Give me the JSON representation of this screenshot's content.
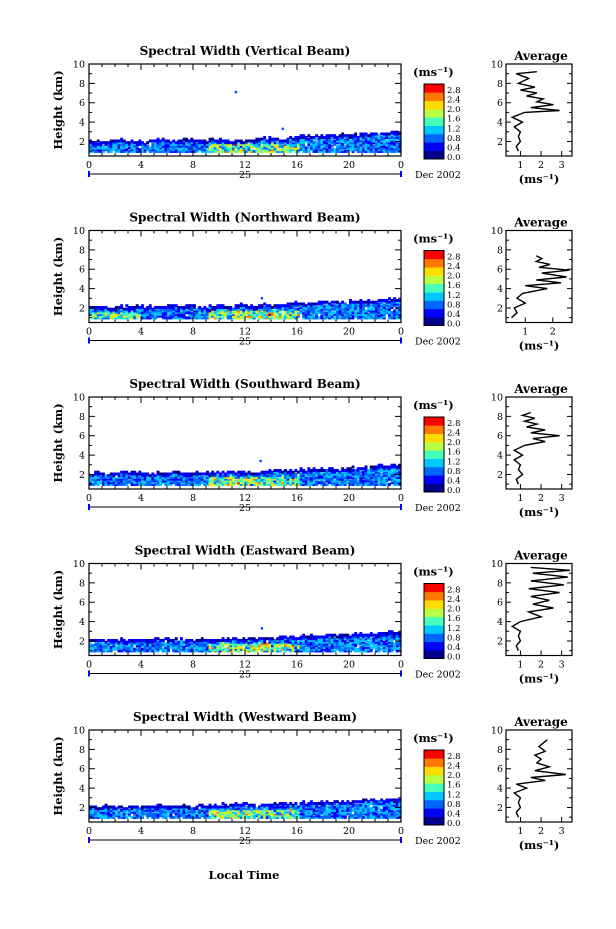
{
  "figure": {
    "x_label": "Local Time",
    "date_label": "Dec 2002",
    "day_label": "25",
    "y_label": "Height (km)",
    "unit_label": "(ms⁻¹)",
    "avg_title": "Average",
    "avg_xlabel": "(ms⁻¹)"
  },
  "colorbar": {
    "ticks": [
      "0.0",
      "0.4",
      "0.8",
      "1.2",
      "1.6",
      "2.0",
      "2.4",
      "2.8"
    ],
    "colors": [
      "#00008b",
      "#0000ff",
      "#0064ff",
      "#00c8ff",
      "#46ffb9",
      "#b9ff46",
      "#ffdc00",
      "#ff7800",
      "#ff0000"
    ]
  },
  "chart_data": [
    {
      "type": "heatmap",
      "title": "Spectral Width (Vertical Beam)",
      "x_ticks": [
        "0",
        "4",
        "8",
        "12",
        "16",
        "20",
        "0"
      ],
      "y_ticks": [
        "2",
        "4",
        "6",
        "8",
        "10"
      ],
      "x_range": [
        0,
        24
      ],
      "y_range": [
        0.5,
        10
      ],
      "layer_top_km": [
        1.9,
        1.9,
        2.0,
        1.9,
        1.9,
        2.1,
        2.0,
        2.1,
        2.0,
        2.1,
        2.0,
        2.0,
        2.1,
        2.3,
        2.2,
        2.3,
        2.4,
        2.5,
        2.5,
        2.6,
        2.6,
        2.7,
        2.7,
        2.8,
        2.8
      ],
      "scatter_points": [
        [
          11.3,
          7.1
        ],
        [
          14.9,
          3.3
        ]
      ],
      "average": {
        "x_ticks": [
          "1",
          "2",
          "3"
        ],
        "x_range": [
          0.3,
          3.5
        ],
        "y_ticks": [
          "2",
          "4",
          "6",
          "8",
          "10"
        ],
        "profile": [
          [
            0.9,
            1.0
          ],
          [
            0.8,
            1.5
          ],
          [
            1.0,
            2.0
          ],
          [
            0.9,
            2.5
          ],
          [
            1.0,
            3.0
          ],
          [
            0.7,
            3.5
          ],
          [
            1.1,
            4.0
          ],
          [
            0.6,
            4.5
          ],
          [
            1.2,
            5.0
          ],
          [
            2.9,
            5.2
          ],
          [
            1.5,
            5.5
          ],
          [
            2.6,
            5.8
          ],
          [
            1.8,
            6.1
          ],
          [
            2.1,
            6.4
          ],
          [
            1.3,
            6.7
          ],
          [
            1.8,
            7.0
          ],
          [
            1.0,
            7.3
          ],
          [
            1.7,
            7.6
          ],
          [
            0.9,
            8.0
          ],
          [
            1.4,
            8.5
          ],
          [
            0.8,
            9.0
          ],
          [
            1.8,
            9.2
          ]
        ]
      }
    },
    {
      "type": "heatmap",
      "title": "Spectral Width (Northward Beam)",
      "x_ticks": [
        "0",
        "4",
        "8",
        "12",
        "16",
        "20",
        "0"
      ],
      "y_ticks": [
        "2",
        "4",
        "6",
        "8",
        "10"
      ],
      "x_range": [
        0,
        24
      ],
      "y_range": [
        0.5,
        10
      ],
      "layer_top_km": [
        2.0,
        2.0,
        2.1,
        2.0,
        2.0,
        2.1,
        2.1,
        2.1,
        2.0,
        2.1,
        2.1,
        2.2,
        2.1,
        2.2,
        2.2,
        2.4,
        2.4,
        2.5,
        2.5,
        2.6,
        2.6,
        2.7,
        2.7,
        2.8,
        2.8
      ],
      "scatter_points": [
        [
          13.3,
          3.0
        ]
      ],
      "average": {
        "x_ticks": [
          "1",
          "2"
        ],
        "x_range": [
          0.3,
          2.7
        ],
        "y_ticks": [
          "2",
          "4",
          "6",
          "8",
          "10"
        ],
        "profile": [
          [
            0.5,
            1.0
          ],
          [
            0.7,
            1.5
          ],
          [
            0.6,
            2.0
          ],
          [
            1.0,
            2.5
          ],
          [
            0.7,
            3.0
          ],
          [
            0.9,
            3.5
          ],
          [
            1.8,
            4.0
          ],
          [
            1.0,
            4.3
          ],
          [
            2.3,
            4.6
          ],
          [
            1.4,
            4.9
          ],
          [
            2.5,
            5.2
          ],
          [
            1.6,
            5.6
          ],
          [
            2.6,
            5.9
          ],
          [
            1.5,
            6.2
          ],
          [
            1.9,
            6.5
          ],
          [
            1.4,
            6.8
          ],
          [
            1.6,
            7.1
          ],
          [
            1.4,
            7.4
          ]
        ]
      }
    },
    {
      "type": "heatmap",
      "title": "Spectral Width (Southward Beam)",
      "x_ticks": [
        "0",
        "4",
        "8",
        "12",
        "16",
        "20",
        "0"
      ],
      "y_ticks": [
        "2",
        "4",
        "6",
        "8",
        "10"
      ],
      "x_range": [
        0,
        24
      ],
      "y_range": [
        0.5,
        10
      ],
      "layer_top_km": [
        2.0,
        2.0,
        2.1,
        2.1,
        2.0,
        2.1,
        2.1,
        2.0,
        2.1,
        2.1,
        2.2,
        2.2,
        2.1,
        2.2,
        2.3,
        2.3,
        2.4,
        2.5,
        2.5,
        2.6,
        2.6,
        2.7,
        2.8,
        2.8,
        2.8
      ],
      "scatter_points": [
        [
          13.2,
          3.4
        ]
      ],
      "average": {
        "x_ticks": [
          "1",
          "2",
          "3"
        ],
        "x_range": [
          0.3,
          3.5
        ],
        "y_ticks": [
          "2",
          "4",
          "6",
          "8",
          "10"
        ],
        "profile": [
          [
            0.9,
            1.0
          ],
          [
            0.8,
            1.5
          ],
          [
            1.1,
            2.0
          ],
          [
            0.9,
            2.5
          ],
          [
            1.0,
            3.0
          ],
          [
            0.7,
            3.5
          ],
          [
            1.1,
            4.0
          ],
          [
            0.7,
            4.5
          ],
          [
            1.2,
            5.0
          ],
          [
            2.2,
            5.4
          ],
          [
            1.6,
            5.7
          ],
          [
            2.9,
            6.0
          ],
          [
            1.5,
            6.3
          ],
          [
            2.2,
            6.6
          ],
          [
            1.3,
            6.9
          ],
          [
            1.8,
            7.2
          ],
          [
            1.2,
            7.5
          ],
          [
            1.7,
            7.8
          ],
          [
            1.1,
            8.1
          ],
          [
            1.5,
            8.4
          ]
        ]
      }
    },
    {
      "type": "heatmap",
      "title": "Spectral Width (Eastward Beam)",
      "x_ticks": [
        "0",
        "4",
        "8",
        "12",
        "16",
        "20",
        "0"
      ],
      "y_ticks": [
        "2",
        "4",
        "6",
        "8",
        "10"
      ],
      "x_range": [
        0,
        24
      ],
      "y_range": [
        0.5,
        10
      ],
      "layer_top_km": [
        2.0,
        2.0,
        2.0,
        2.1,
        2.0,
        2.1,
        2.1,
        2.0,
        2.1,
        2.0,
        2.1,
        2.1,
        2.2,
        2.2,
        2.3,
        2.3,
        2.4,
        2.5,
        2.5,
        2.5,
        2.6,
        2.6,
        2.7,
        2.8,
        2.8
      ],
      "scatter_points": [
        [
          13.3,
          3.3
        ]
      ],
      "average": {
        "x_ticks": [
          "1",
          "2",
          "3"
        ],
        "x_range": [
          0.3,
          3.5
        ],
        "y_ticks": [
          "2",
          "4",
          "6",
          "8",
          "10"
        ],
        "profile": [
          [
            0.9,
            1.0
          ],
          [
            0.8,
            1.5
          ],
          [
            1.0,
            2.0
          ],
          [
            0.9,
            2.5
          ],
          [
            1.0,
            3.0
          ],
          [
            0.6,
            3.5
          ],
          [
            1.0,
            4.0
          ],
          [
            2.0,
            4.5
          ],
          [
            1.4,
            5.0
          ],
          [
            2.6,
            5.4
          ],
          [
            1.6,
            5.8
          ],
          [
            2.4,
            6.2
          ],
          [
            1.5,
            6.6
          ],
          [
            2.9,
            7.0
          ],
          [
            1.4,
            7.4
          ],
          [
            3.1,
            7.8
          ],
          [
            1.5,
            8.2
          ],
          [
            3.3,
            8.6
          ],
          [
            1.6,
            9.0
          ],
          [
            3.4,
            9.3
          ],
          [
            1.5,
            9.6
          ]
        ]
      }
    },
    {
      "type": "heatmap",
      "title": "Spectral Width (Westward Beam)",
      "x_ticks": [
        "0",
        "4",
        "8",
        "12",
        "16",
        "20",
        "0"
      ],
      "y_ticks": [
        "2",
        "4",
        "6",
        "8",
        "10"
      ],
      "x_range": [
        0,
        24
      ],
      "y_range": [
        0.5,
        10
      ],
      "layer_top_km": [
        1.9,
        2.0,
        2.0,
        2.0,
        2.1,
        2.1,
        2.1,
        2.0,
        2.1,
        2.1,
        2.2,
        2.2,
        2.2,
        2.2,
        2.3,
        2.3,
        2.4,
        2.4,
        2.5,
        2.5,
        2.6,
        2.7,
        2.7,
        2.8,
        2.8
      ],
      "scatter_points": [],
      "average": {
        "x_ticks": [
          "1",
          "2",
          "3"
        ],
        "x_range": [
          0.3,
          3.5
        ],
        "y_ticks": [
          "2",
          "4",
          "6",
          "8",
          "10"
        ],
        "profile": [
          [
            0.9,
            1.0
          ],
          [
            0.8,
            1.5
          ],
          [
            1.0,
            2.0
          ],
          [
            0.9,
            2.5
          ],
          [
            1.0,
            3.0
          ],
          [
            0.7,
            3.5
          ],
          [
            1.3,
            4.0
          ],
          [
            0.8,
            4.4
          ],
          [
            2.2,
            4.8
          ],
          [
            1.5,
            5.1
          ],
          [
            3.2,
            5.4
          ],
          [
            1.7,
            5.8
          ],
          [
            2.4,
            6.2
          ],
          [
            1.8,
            6.6
          ],
          [
            2.0,
            7.0
          ],
          [
            1.7,
            7.4
          ],
          [
            2.2,
            7.8
          ],
          [
            1.9,
            8.3
          ],
          [
            2.3,
            9.0
          ]
        ]
      }
    }
  ]
}
